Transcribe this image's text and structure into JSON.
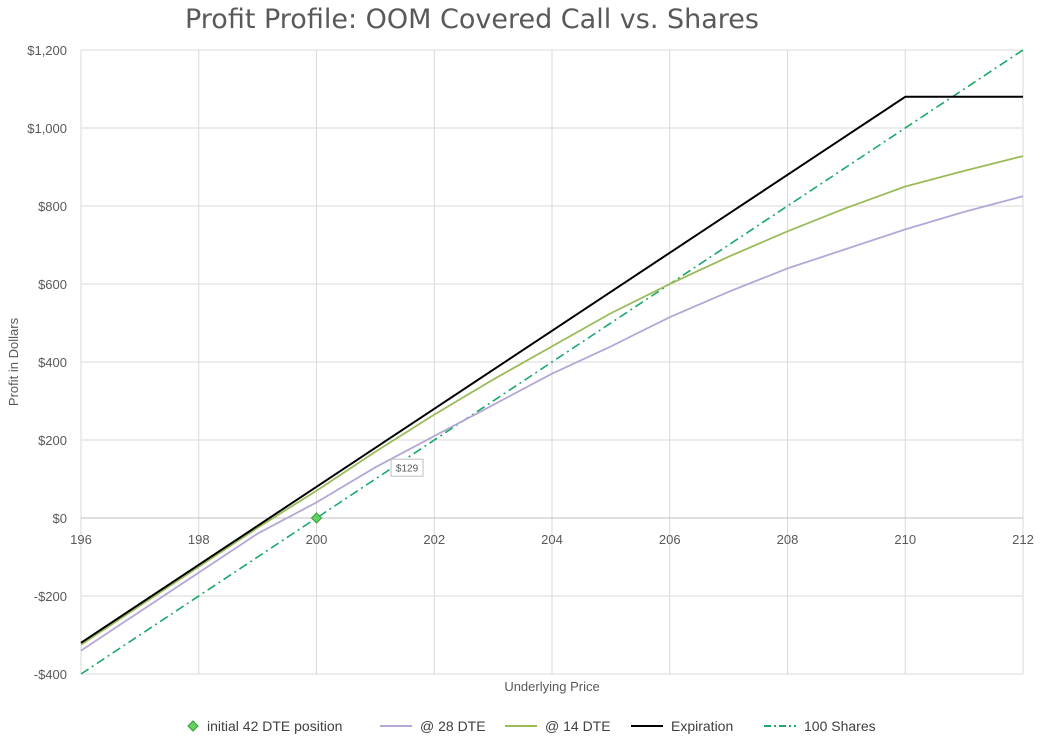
{
  "chart_data": {
    "type": "line",
    "title": "Profit Profile: OOM Covered Call vs. Shares",
    "xlabel": "Underlying Price",
    "ylabel": "Profit in Dollars",
    "xlim": [
      196,
      212
    ],
    "ylim": [
      -400,
      1200
    ],
    "x_ticks": [
      196,
      198,
      200,
      202,
      204,
      206,
      208,
      210,
      212
    ],
    "y_ticks": [
      -400,
      -200,
      0,
      200,
      400,
      600,
      800,
      1000,
      1200
    ],
    "x_tick_labels": [
      "196",
      "198",
      "200",
      "202",
      "204",
      "206",
      "208",
      "210",
      "212"
    ],
    "y_tick_labels": [
      "-$400",
      "-$200",
      "$0",
      "$200",
      "$400",
      "$600",
      "$800",
      "$1,000",
      "$1,200"
    ],
    "grid": true,
    "legend_position": "bottom",
    "series": [
      {
        "name": "initial 42 DTE position",
        "kind": "marker",
        "color": "#5fd35f",
        "points": [
          [
            200,
            0
          ]
        ]
      },
      {
        "name": "@ 28 DTE",
        "kind": "line",
        "color": "#b4a7d6",
        "points": [
          [
            196,
            -340
          ],
          [
            197,
            -240
          ],
          [
            198,
            -140
          ],
          [
            199,
            -40
          ],
          [
            200,
            40
          ],
          [
            201,
            130
          ],
          [
            202,
            210
          ],
          [
            203,
            290
          ],
          [
            204,
            370
          ],
          [
            205,
            440
          ],
          [
            206,
            515
          ],
          [
            207,
            580
          ],
          [
            208,
            640
          ],
          [
            209,
            690
          ],
          [
            210,
            740
          ],
          [
            211,
            785
          ],
          [
            212,
            825
          ]
        ]
      },
      {
        "name": "@ 14 DTE",
        "kind": "line",
        "color": "#9bbb59",
        "points": [
          [
            196,
            -325
          ],
          [
            197,
            -225
          ],
          [
            198,
            -125
          ],
          [
            199,
            -25
          ],
          [
            200,
            70
          ],
          [
            201,
            170
          ],
          [
            202,
            265
          ],
          [
            203,
            355
          ],
          [
            204,
            440
          ],
          [
            205,
            525
          ],
          [
            206,
            600
          ],
          [
            207,
            670
          ],
          [
            208,
            735
          ],
          [
            209,
            795
          ],
          [
            210,
            850
          ],
          [
            211,
            890
          ],
          [
            212,
            928
          ]
        ]
      },
      {
        "name": "Expiration",
        "kind": "line",
        "color": "#000000",
        "points": [
          [
            196,
            -320
          ],
          [
            197,
            -220
          ],
          [
            198,
            -120
          ],
          [
            199,
            -20
          ],
          [
            200,
            80
          ],
          [
            201,
            180
          ],
          [
            202,
            280
          ],
          [
            203,
            380
          ],
          [
            204,
            480
          ],
          [
            205,
            580
          ],
          [
            206,
            680
          ],
          [
            207,
            780
          ],
          [
            208,
            880
          ],
          [
            209,
            980
          ],
          [
            210,
            1080
          ],
          [
            211,
            1080
          ],
          [
            212,
            1080
          ]
        ]
      },
      {
        "name": "100 Shares",
        "kind": "dashdot",
        "color": "#1aa86b",
        "points": [
          [
            196,
            -400
          ],
          [
            212,
            1200
          ]
        ]
      }
    ],
    "annotations": [
      {
        "text": "$129",
        "x": 201.3,
        "y": 129
      }
    ]
  }
}
